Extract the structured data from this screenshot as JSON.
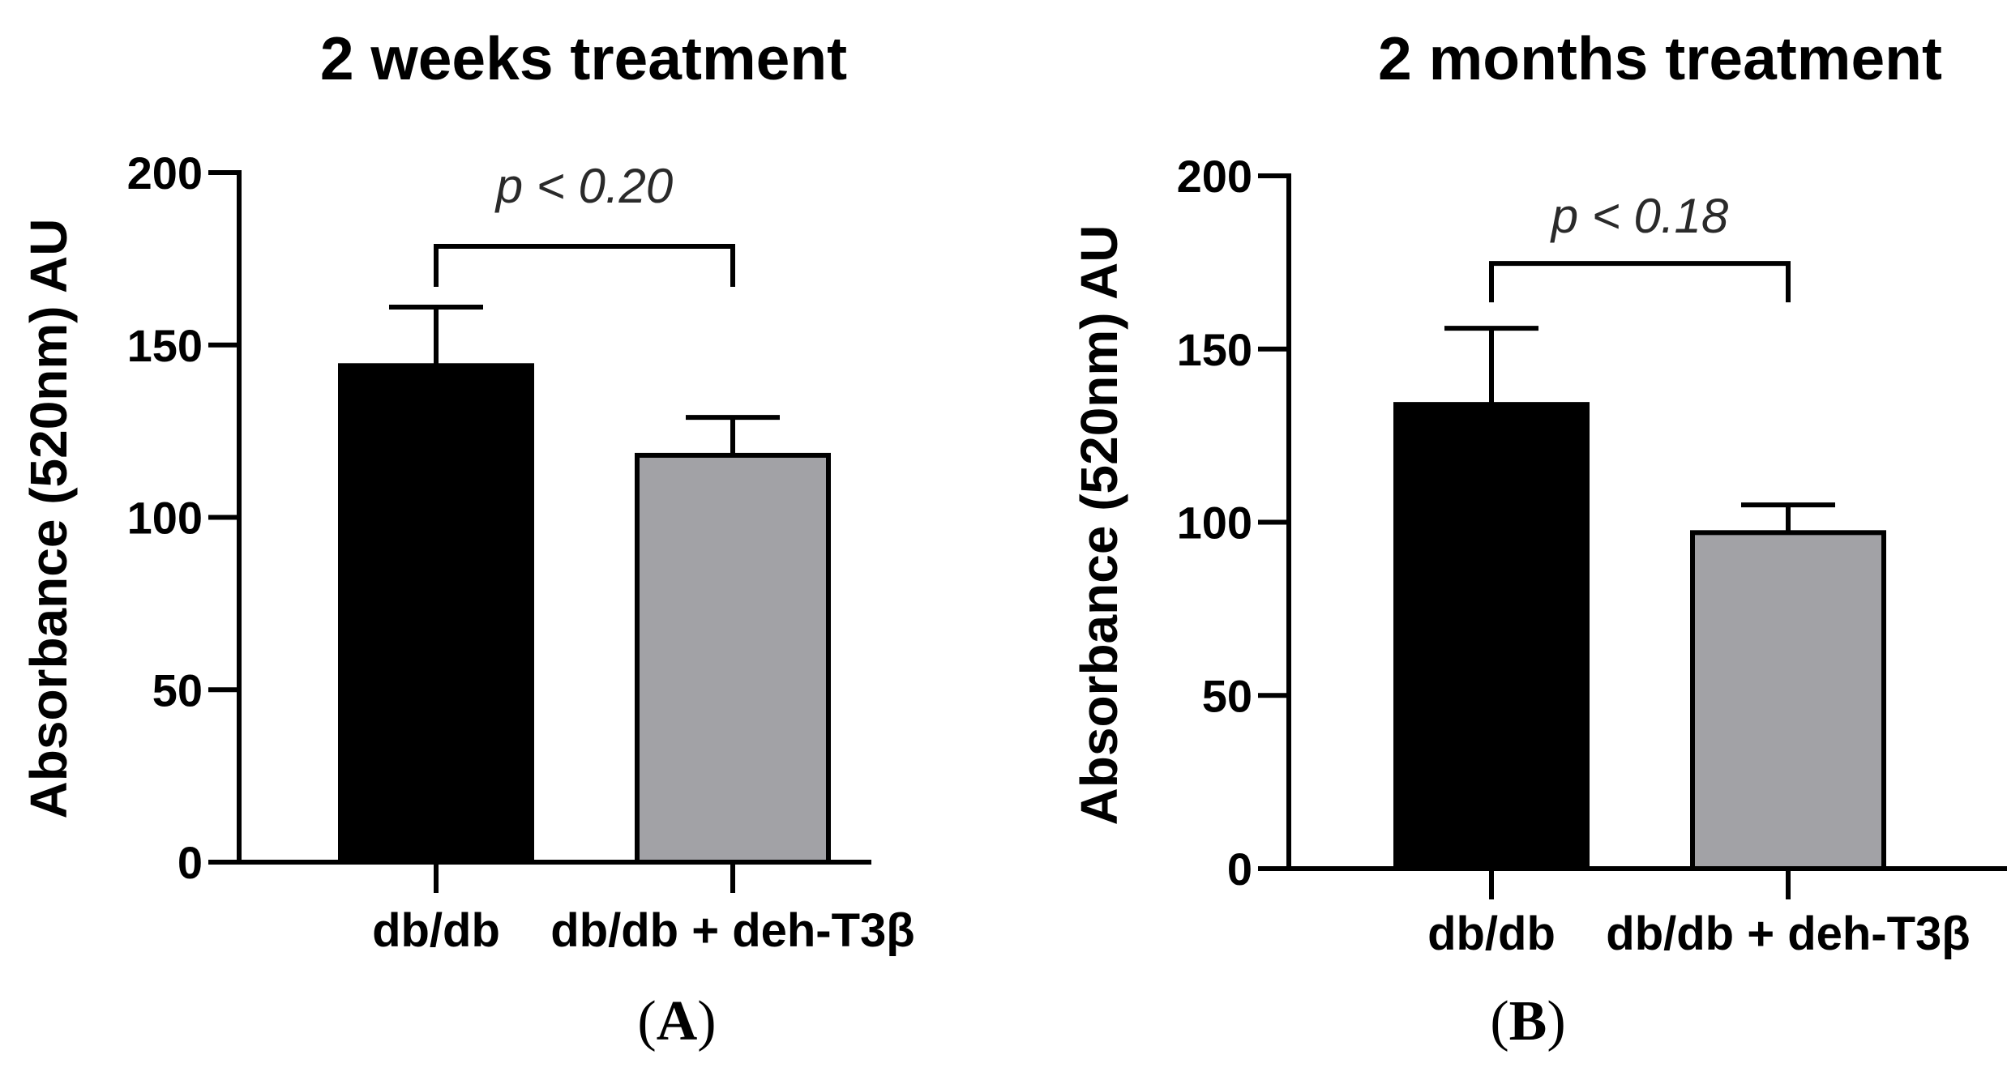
{
  "chart_data": [
    {
      "type": "bar",
      "panel_label": "A",
      "title": "2 weeks treatment",
      "xlabel": "",
      "ylabel": "Absorbance (520nm) AU",
      "ylim": [
        0,
        200
      ],
      "yticks": [
        "0",
        "50",
        "100",
        "150",
        "200"
      ],
      "categories": [
        "db/db",
        "db/db + deh-T3β"
      ],
      "values": [
        144,
        118
      ],
      "errors": [
        17,
        11
      ],
      "colors": [
        "#000000",
        "#a2a2a6"
      ],
      "annotation": {
        "text": "p < 0.20",
        "between": [
          0,
          1
        ]
      }
    },
    {
      "type": "bar",
      "panel_label": "B",
      "title": "2 months treatment",
      "xlabel": "",
      "ylabel": "Absorbance (520nm) AU",
      "ylim": [
        0,
        200
      ],
      "yticks": [
        "0",
        "50",
        "100",
        "150",
        "200"
      ],
      "categories": [
        "db/db",
        "db/db + deh-T3β"
      ],
      "values": [
        134,
        97
      ],
      "errors": [
        22,
        8
      ],
      "colors": [
        "#000000",
        "#a2a2a6"
      ],
      "annotation": {
        "text": "p < 0.18",
        "between": [
          0,
          1
        ]
      }
    }
  ]
}
